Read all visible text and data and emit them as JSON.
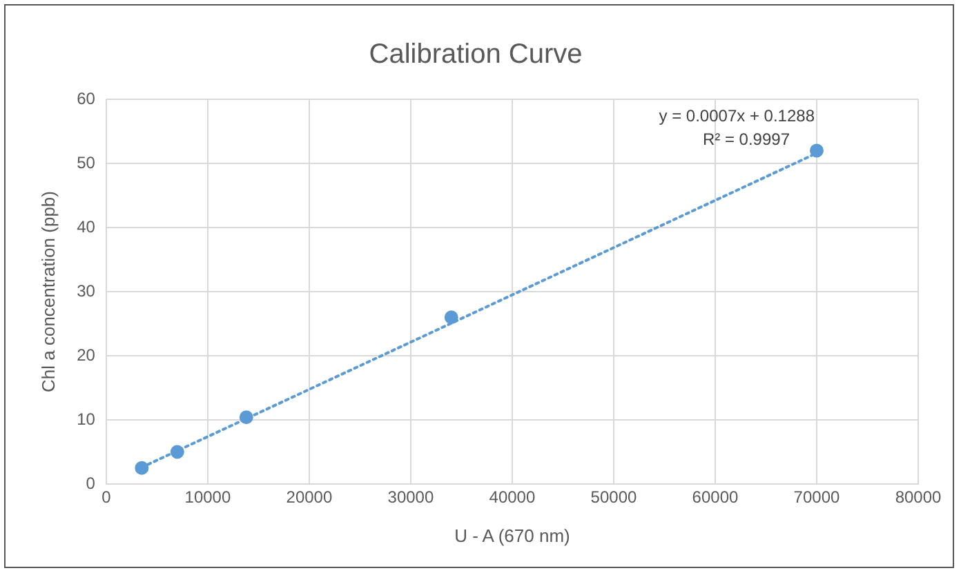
{
  "chart_data": {
    "type": "scatter",
    "title": "Calibration Curve",
    "xlabel": "U - A (670 nm)",
    "ylabel": "Chl a concentration (ppb)",
    "xlim": [
      0,
      80000
    ],
    "xticks": [
      0,
      10000,
      20000,
      30000,
      40000,
      50000,
      60000,
      70000,
      80000
    ],
    "ylim": [
      0,
      60
    ],
    "yticks": [
      0,
      10,
      20,
      30,
      40,
      50,
      60
    ],
    "grid": true,
    "legend": false,
    "marker": "circle",
    "series": [
      {
        "color": "#5b9bd5",
        "x": [
          3500,
          7000,
          13800,
          34000,
          70000
        ],
        "values": [
          2.5,
          5,
          10.4,
          26,
          52
        ]
      },
      {
        "type": "line",
        "color": "#5b9bd5",
        "line_style": "dotted",
        "marker": "none",
        "x": [
          3500,
          70000
        ],
        "values": [
          2.6,
          51.6
        ]
      }
    ],
    "annotations": [
      "y = 0.0007x + 0.1288",
      "R² = 0.9997"
    ]
  }
}
